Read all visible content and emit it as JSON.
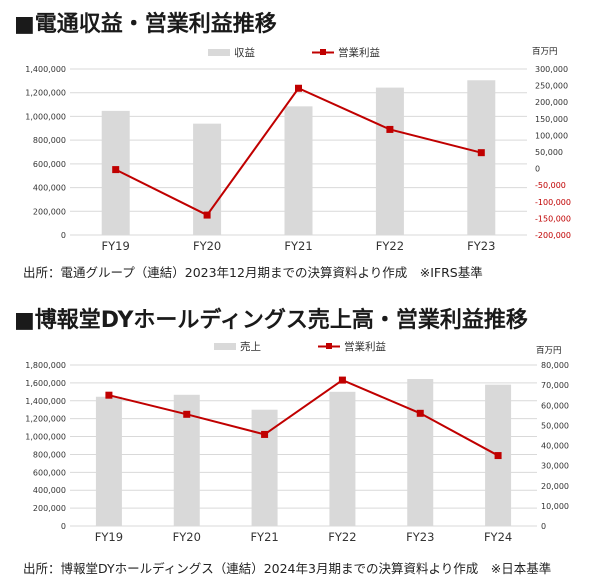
{
  "chart_data": [
    {
      "type": "bar+line",
      "title": "■電通収益・営業利益推移",
      "source": "出所：電通グループ（連結）2023年12月期までの決算資料より作成　※IFRS基準",
      "unit_right": "百万円",
      "categories": [
        "FY19",
        "FY20",
        "FY21",
        "FY22",
        "FY23"
      ],
      "series": [
        {
          "name": "収益",
          "kind": "bar",
          "axis": "left",
          "values": [
            1047000,
            939000,
            1085000,
            1243000,
            1305000
          ]
        },
        {
          "name": "営業利益",
          "kind": "line",
          "axis": "right",
          "values": [
            -3000,
            -140000,
            242000,
            118000,
            48000
          ]
        }
      ],
      "left_axis": {
        "min": 0,
        "max": 1400000,
        "step": 200000,
        "ticks": [
          "0",
          "200,000",
          "400,000",
          "600,000",
          "800,000",
          "1,000,000",
          "1,200,000",
          "1,400,000"
        ]
      },
      "right_axis": {
        "min": -200000,
        "max": 300000,
        "step": 50000,
        "ticks": [
          "-200,000",
          "-150,000",
          "-100,000",
          "-50,000",
          "0",
          "50,000",
          "100,000",
          "150,000",
          "200,000",
          "250,000",
          "300,000"
        ]
      },
      "grid": true,
      "legend": "top-center",
      "colors": {
        "bar": "#d9d9d9",
        "line": "#c00000",
        "negative_tick": "#c00000"
      }
    },
    {
      "type": "bar+line",
      "title": "■博報堂DYホールディングス売上高・営業利益推移",
      "source": "出所：博報堂DYホールディングス（連結）2024年3月期までの決算資料より作成　※日本基準",
      "unit_right": "百万円",
      "categories": [
        "FY19",
        "FY20",
        "FY21",
        "FY22",
        "FY23",
        "FY24"
      ],
      "series": [
        {
          "name": "売上",
          "kind": "bar",
          "axis": "left",
          "values": [
            1445000,
            1467000,
            1300000,
            1500000,
            1643000,
            1580000
          ]
        },
        {
          "name": "営業利益",
          "kind": "line",
          "axis": "right",
          "values": [
            65000,
            55500,
            45500,
            72500,
            56000,
            35000
          ]
        }
      ],
      "left_axis": {
        "min": 0,
        "max": 1800000,
        "step": 200000,
        "ticks": [
          "0",
          "200,000",
          "400,000",
          "600,000",
          "800,000",
          "1,000,000",
          "1,200,000",
          "1,400,000",
          "1,600,000",
          "1,800,000"
        ]
      },
      "right_axis": {
        "min": 0,
        "max": 80000,
        "step": 10000,
        "ticks": [
          "0",
          "10,000",
          "20,000",
          "30,000",
          "40,000",
          "50,000",
          "60,000",
          "70,000",
          "80,000"
        ]
      },
      "grid": true,
      "legend": "top-center",
      "colors": {
        "bar": "#d9d9d9",
        "line": "#c00000",
        "negative_tick": "#c00000"
      }
    }
  ]
}
